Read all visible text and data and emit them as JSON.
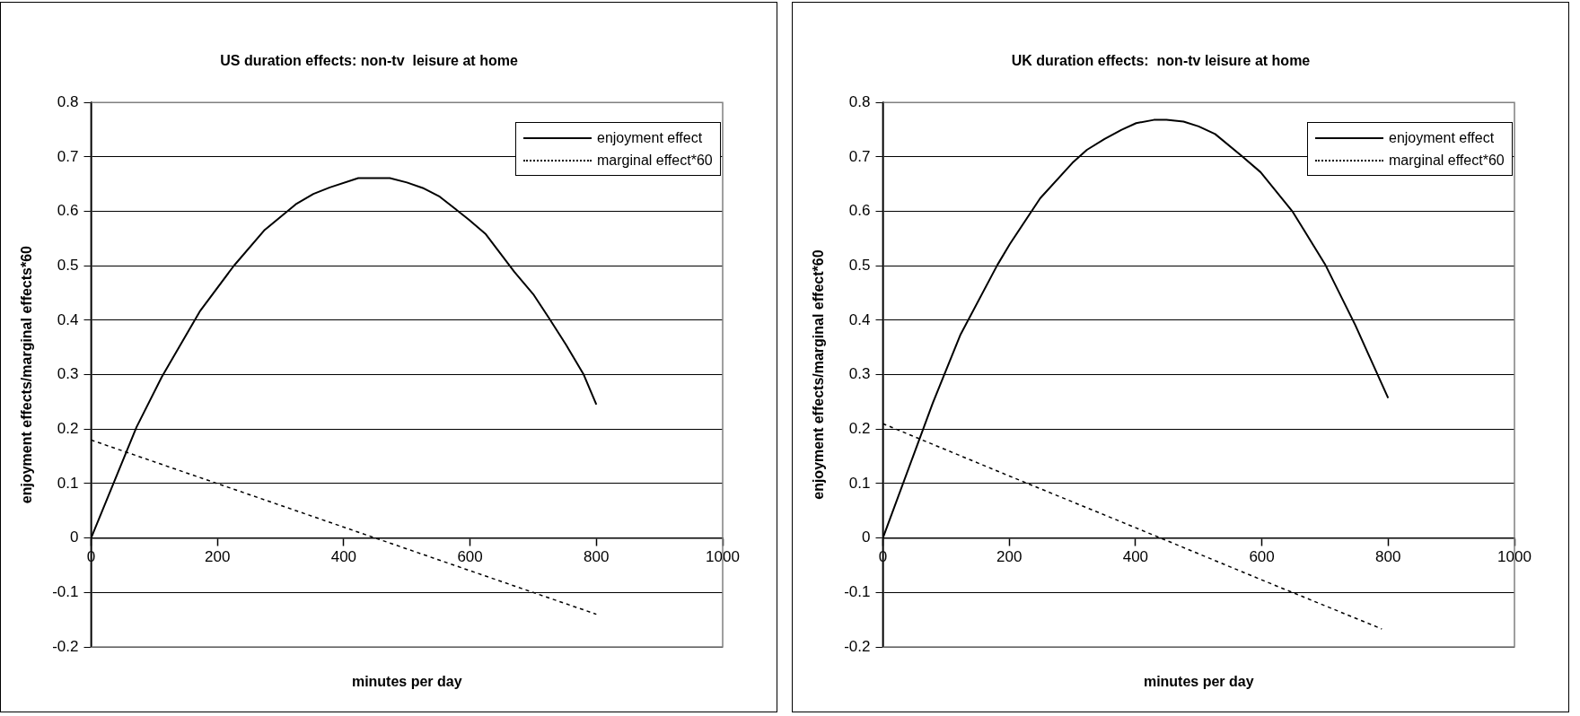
{
  "chart_data": [
    {
      "type": "line",
      "title": "US duration effects: non-tv  leisure at home",
      "xlabel": "minutes per day",
      "ylabel": "enjoyment effects/marginal effects*60",
      "xlim": [
        0,
        1000
      ],
      "xticks": [
        0,
        200,
        400,
        600,
        800,
        1000
      ],
      "ylim": [
        -0.2,
        0.8
      ],
      "yticks": [
        -0.2,
        -0.1,
        0,
        0.1,
        0.2,
        0.3,
        0.4,
        0.5,
        0.6,
        0.7,
        0.8
      ],
      "grid": "y",
      "legend": "top right",
      "marker": "none",
      "series": [
        {
          "name": "enjoyment effect",
          "color": "#000000",
          "line_style": "solid",
          "x": [
            0,
            72,
            112,
            172,
            226,
            274,
            324,
            352,
            378,
            423,
            473,
            500,
            525,
            552,
            598,
            625,
            670,
            700,
            725,
            752,
            780,
            800
          ],
          "values": [
            0,
            0.204,
            0.296,
            0.416,
            0.5,
            0.565,
            0.613,
            0.632,
            0.644,
            0.661,
            0.661,
            0.653,
            0.643,
            0.627,
            0.585,
            0.558,
            0.489,
            0.448,
            0.404,
            0.355,
            0.3,
            0.245
          ]
        },
        {
          "name": "marginal effect*60",
          "color": "#000000",
          "line_style": "dashed",
          "x": [
            0,
            200,
            400,
            600,
            800
          ],
          "values": [
            0.18,
            0.1,
            0.02,
            -0.06,
            -0.14
          ]
        }
      ]
    },
    {
      "type": "line",
      "title": "UK duration effects:  non-tv leisure at home",
      "xlabel": "minutes per day",
      "ylabel": "enjoyment effects/marginal effect*60",
      "xlim": [
        0,
        1000
      ],
      "xticks": [
        0,
        200,
        400,
        600,
        800,
        1000
      ],
      "ylim": [
        -0.2,
        0.8
      ],
      "yticks": [
        -0.2,
        -0.1,
        0,
        0.1,
        0.2,
        0.3,
        0.4,
        0.5,
        0.6,
        0.7,
        0.8
      ],
      "grid": "y",
      "legend": "top right",
      "marker": "none",
      "series": [
        {
          "name": "enjoyment effect",
          "color": "#000000",
          "line_style": "solid",
          "x": [
            0,
            79,
            123,
            181,
            201,
            249,
            300,
            323,
            351,
            378,
            401,
            429,
            449,
            476,
            500,
            526,
            568,
            598,
            649,
            700,
            748,
            800
          ],
          "values": [
            0,
            0.248,
            0.374,
            0.501,
            0.54,
            0.624,
            0.689,
            0.713,
            0.733,
            0.75,
            0.762,
            0.768,
            0.768,
            0.765,
            0.756,
            0.742,
            0.702,
            0.672,
            0.599,
            0.503,
            0.391,
            0.257
          ]
        },
        {
          "name": "marginal effect*60",
          "color": "#000000",
          "line_style": "dashed",
          "x": [
            0,
            200,
            400,
            600,
            790
          ],
          "values": [
            0.21,
            0.114,
            0.019,
            -0.077,
            -0.167
          ]
        }
      ]
    }
  ]
}
